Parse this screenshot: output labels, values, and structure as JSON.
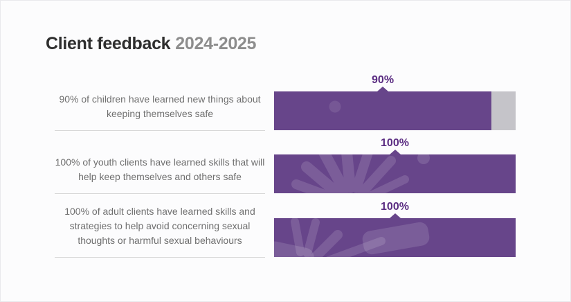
{
  "title": {
    "main": "Client feedback",
    "period": "2024-2025"
  },
  "colors": {
    "purple": "#67458a",
    "purple_dark": "#5b2d82",
    "track_gray": "#c5c4c9",
    "text_gray": "#6f6f6f",
    "title_dark": "#2e2e2e",
    "title_gray": "#8d8d8d",
    "divider": "#d7d7d7",
    "page_bg": "#fcfcfd"
  },
  "chart_data": {
    "type": "bar",
    "orientation": "horizontal",
    "title": "Client feedback 2024-2025",
    "value_range": [
      0,
      100
    ],
    "grid": false,
    "legend": false,
    "rows": [
      {
        "label": "90% of children have learned new things about keeping themselves safe",
        "value": 90,
        "value_label": "90%"
      },
      {
        "label": "100% of youth clients have learned skills that will help keep themselves and others safe",
        "value": 100,
        "value_label": "100%"
      },
      {
        "label": "100% of adult clients have learned skills and strategies to help avoid concerning sexual thoughts or harmful sexual behaviours",
        "value": 100,
        "value_label": "100%"
      }
    ]
  }
}
